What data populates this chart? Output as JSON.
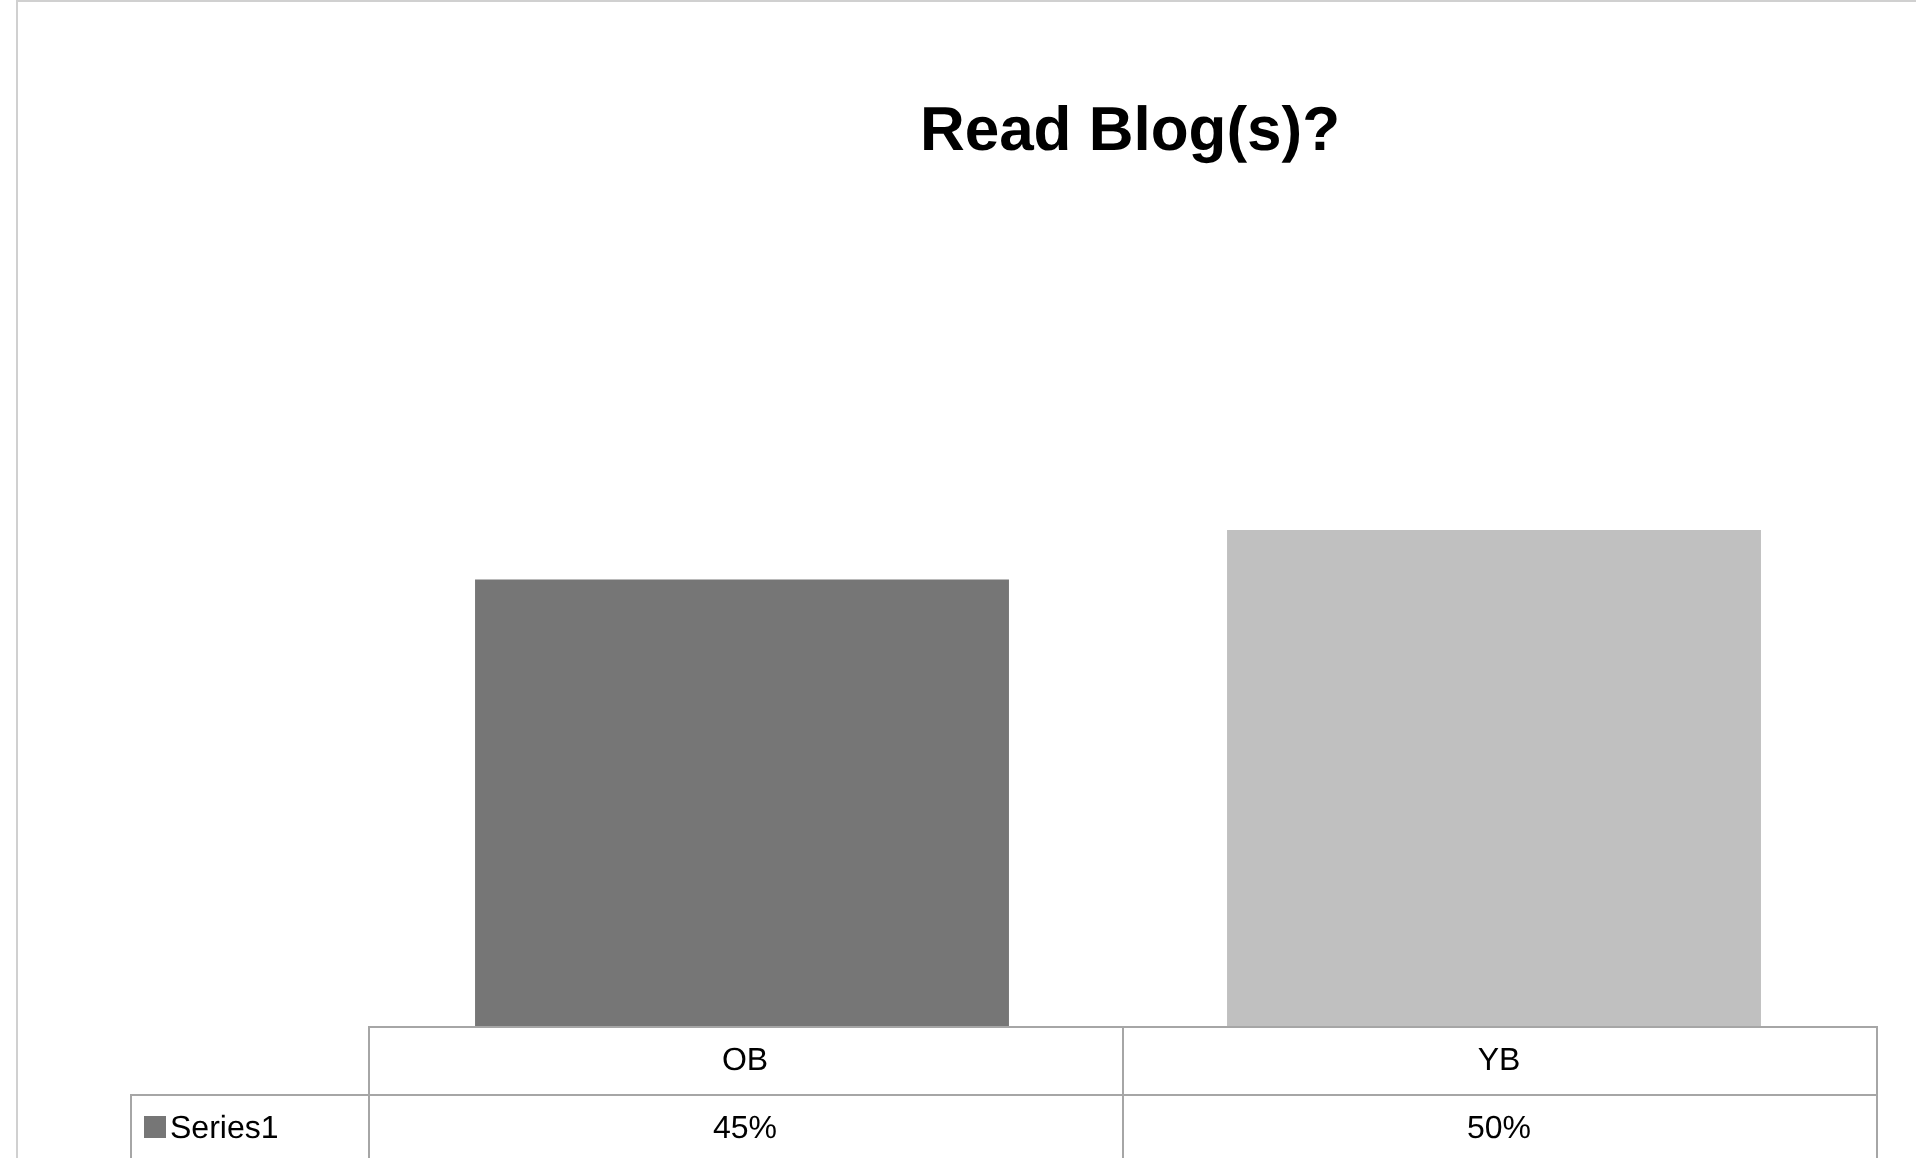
{
  "chart_data": {
    "type": "bar",
    "title": "Read Blog(s)?",
    "categories": [
      "OB",
      "YB"
    ],
    "series": [
      {
        "name": "Series1",
        "values": [
          45,
          50
        ],
        "colors": [
          "#767676",
          "#c0c0c0"
        ],
        "value_labels": [
          "45%",
          "50%"
        ]
      }
    ],
    "legend": "bottom left"
  }
}
